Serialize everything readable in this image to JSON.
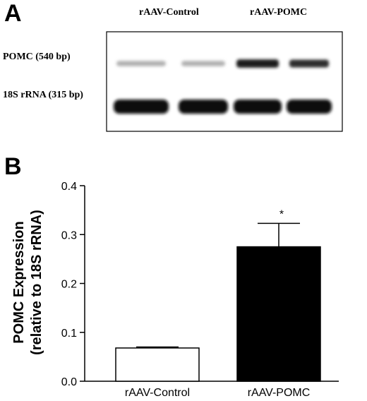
{
  "panel_a": {
    "letter": "A",
    "group_labels": [
      "rAAV-Control",
      "rAAV-POMC"
    ],
    "row_labels": [
      "POMC (540 bp)",
      "18S rRNA (315 bp)"
    ],
    "lanes": [
      {
        "group": "rAAV-Control",
        "pomc_band_intensity": 0.25,
        "rrna_band_intensity": 1.0
      },
      {
        "group": "rAAV-Control",
        "pomc_band_intensity": 0.25,
        "rrna_band_intensity": 1.0
      },
      {
        "group": "rAAV-POMC",
        "pomc_band_intensity": 0.95,
        "rrna_band_intensity": 1.0
      },
      {
        "group": "rAAV-POMC",
        "pomc_band_intensity": 0.85,
        "rrna_band_intensity": 1.0
      }
    ]
  },
  "panel_b": {
    "letter": "B"
  },
  "chart_data": {
    "type": "bar",
    "categories": [
      "rAAV-Control",
      "rAAV-POMC"
    ],
    "values": [
      0.068,
      0.275
    ],
    "errors": [
      0.002,
      0.048
    ],
    "bar_colors": [
      "#ffffff",
      "#000000"
    ],
    "significance": [
      "",
      "*"
    ],
    "ylabel_line1": "POMC Expression",
    "ylabel_line2": "(relative to 18S rRNA)",
    "ylim": [
      0,
      0.4
    ],
    "yticks": [
      "0.0",
      "0.1",
      "0.2",
      "0.3",
      "0.4"
    ],
    "ytick_values": [
      0,
      0.1,
      0.2,
      0.3,
      0.4
    ],
    "grid": false
  }
}
